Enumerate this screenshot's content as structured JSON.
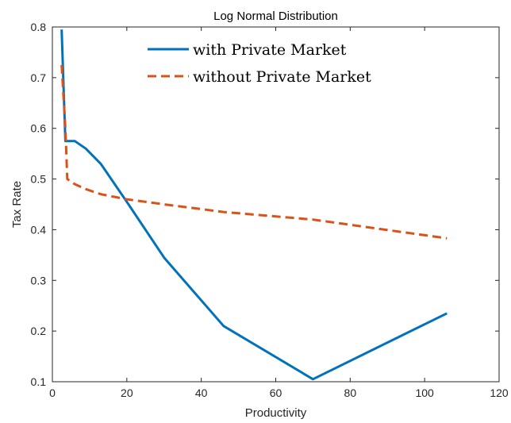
{
  "chart_data": {
    "type": "line",
    "title": "Log Normal Distribution",
    "xlabel": "Productivity",
    "ylabel": "Tax Rate",
    "xlim": [
      0,
      120
    ],
    "ylim": [
      0.1,
      0.8
    ],
    "xticks": [
      0,
      20,
      40,
      60,
      80,
      100,
      120
    ],
    "yticks": [
      0.1,
      0.2,
      0.3,
      0.4,
      0.5,
      0.6,
      0.7,
      0.8
    ],
    "xtick_labels": [
      "0",
      "20",
      "40",
      "60",
      "80",
      "100",
      "120"
    ],
    "ytick_labels": [
      "0.1",
      "0.2",
      "0.3",
      "0.4",
      "0.5",
      "0.6",
      "0.7",
      "0.8"
    ],
    "grid": false,
    "legend_position": "top-center",
    "series": [
      {
        "name": "with Private Market",
        "style": "solid",
        "color": "#0072BD",
        "x": [
          2.5,
          3.5,
          4.5,
          6,
          9,
          13,
          20,
          30,
          46,
          70,
          106
        ],
        "y": [
          0.795,
          0.575,
          0.575,
          0.575,
          0.56,
          0.53,
          0.455,
          0.345,
          0.21,
          0.105,
          0.235
        ]
      },
      {
        "name": "without Private Market",
        "style": "dashed",
        "color": "#D95319",
        "x": [
          2.5,
          3.5,
          4,
          6,
          9,
          13,
          20,
          30,
          46,
          70,
          106
        ],
        "y": [
          0.725,
          0.6,
          0.5,
          0.49,
          0.48,
          0.47,
          0.46,
          0.45,
          0.435,
          0.42,
          0.383
        ]
      }
    ]
  }
}
